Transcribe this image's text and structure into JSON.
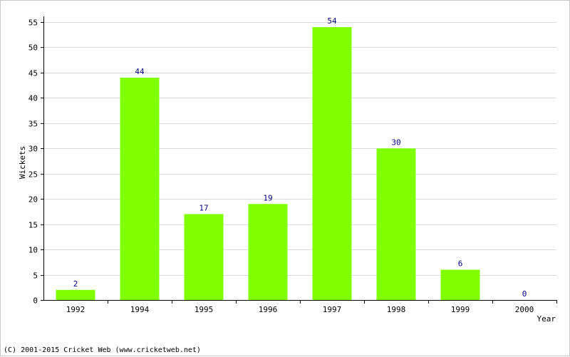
{
  "chart_data": {
    "type": "bar",
    "categories": [
      "1992",
      "1994",
      "1995",
      "1996",
      "1997",
      "1998",
      "1999",
      "2000"
    ],
    "values": [
      2,
      44,
      17,
      19,
      54,
      30,
      6,
      0
    ],
    "title": "",
    "xlabel": "Year",
    "ylabel": "Wickets",
    "ylim": [
      0,
      55
    ],
    "yticks": [
      0,
      5,
      10,
      15,
      20,
      25,
      30,
      35,
      40,
      45,
      50,
      55
    ],
    "grid": true,
    "bar_color": "#80ff00",
    "value_label_color": "#000080"
  },
  "footer": {
    "copyright": "(C) 2001-2015 Cricket Web (www.cricketweb.net)"
  }
}
